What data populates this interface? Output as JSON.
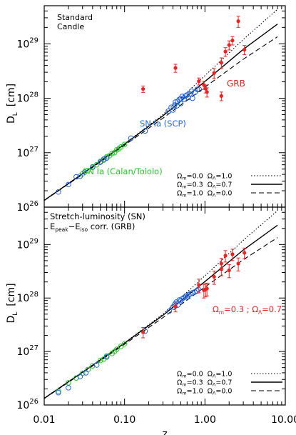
{
  "chart_data": [
    {
      "type": "scatter",
      "panel": "top",
      "annotations": [
        "Standard",
        "Candle"
      ],
      "xlabel": "z",
      "ylabel": "D_L   [cm]",
      "xscale": "log",
      "yscale": "log",
      "xlim": [
        0.01,
        10.0
      ],
      "ylim": [
        1e+26,
        5e+29
      ],
      "x_ticks": [
        "0.01",
        "0.10",
        "1.00",
        "10.00"
      ],
      "y_ticks": [
        "10^26",
        "10^27",
        "10^28",
        "10^29"
      ],
      "legend_position": "bottom-right",
      "lines": [
        {
          "name": "Ω_M=0.0  Ω_Λ=1.0",
          "style": "dotted",
          "x": [
            0.01,
            0.03,
            0.1,
            0.3,
            1.0,
            3.0,
            8.0
          ],
          "y": [
            1.35e+26,
            4.15e+26,
            1.46e+27,
            5e+27,
            2.6e+28,
            1.2e+29,
            4.3e+29
          ]
        },
        {
          "name": "Ω_M=0.3  Ω_Λ=0.7",
          "style": "solid",
          "x": [
            0.01,
            0.03,
            0.1,
            0.3,
            1.0,
            3.0,
            8.0
          ],
          "y": [
            1.33e+26,
            4.12e+26,
            1.44e+27,
            4.75e+27,
            2.03e+28,
            7.9e+28,
            2.3e+29
          ]
        },
        {
          "name": "Ω_M=1.0  Ω_Λ=0.0",
          "style": "dashed",
          "x": [
            0.01,
            0.03,
            0.1,
            0.3,
            1.0,
            3.0,
            8.0
          ],
          "y": [
            1.32e+26,
            4e+26,
            1.37e+27,
            4.3e+27,
            1.6e+28,
            5.2e+28,
            1.35e+29
          ]
        }
      ],
      "series": [
        {
          "name": "SN Ia (Calan/Tololo)",
          "color": "#22cc22",
          "marker": "circle-open",
          "x": [
            0.03,
            0.035,
            0.04,
            0.045,
            0.05,
            0.055,
            0.06,
            0.065,
            0.07,
            0.075,
            0.08,
            0.085,
            0.09,
            0.1
          ],
          "y": [
            4.1e+26,
            4.7e+26,
            5.5e+26,
            6e+26,
            6.9e+26,
            7.3e+26,
            8.4e+26,
            8.8e+26,
            9.7e+26,
            1e+27,
            1.13e+27,
            1.18e+27,
            1.27e+27,
            1.42e+27
          ]
        },
        {
          "name": "SN Ia (SCP)",
          "color": "#2266dd",
          "marker": "circle-open",
          "x": [
            0.015,
            0.02,
            0.025,
            0.028,
            0.032,
            0.04,
            0.05,
            0.055,
            0.06,
            0.12,
            0.18,
            0.35,
            0.38,
            0.4,
            0.42,
            0.43,
            0.45,
            0.46,
            0.48,
            0.5,
            0.5,
            0.52,
            0.55,
            0.57,
            0.6,
            0.62,
            0.65,
            0.68,
            0.7,
            0.75,
            0.8,
            0.85
          ],
          "y": [
            1.9e+26,
            2.6e+26,
            3.6e+26,
            3.7e+26,
            4.4e+26,
            5.4e+26,
            6.7e+26,
            7.6e+26,
            8e+26,
            1.85e+27,
            2.5e+27,
            5.8e+27,
            6.8e+27,
            6.1e+27,
            7.5e+27,
            8.5e+27,
            7.3e+27,
            8.8e+27,
            9.5e+27,
            8e+27,
            9.8e+27,
            1.08e+28,
            9.6e+27,
            1.1e+28,
            1.15e+28,
            1.03e+28,
            1.2e+28,
            1.35e+28,
            1e+28,
            1.28e+28,
            1.45e+28,
            1.45e+28
          ]
        },
        {
          "name": "GRB",
          "color": "#ee2222",
          "marker": "filled-circle-errorbar",
          "x": [
            0.17,
            0.43,
            0.84,
            0.97,
            1.02,
            1.06,
            1.3,
            1.6,
            1.6,
            1.8,
            2.0,
            2.2,
            2.6,
            3.1
          ],
          "y": [
            1.48e+28,
            3.6e+28,
            2.05e+28,
            1.75e+28,
            1.5e+28,
            1.3e+28,
            2.9e+28,
            1.1e+28,
            4.5e+28,
            7.2e+28,
            9.5e+28,
            1.15e+29,
            2.6e+29,
            7.8e+28
          ],
          "y_err": [
            2e+27,
            6e+27,
            3e+27,
            3e+27,
            2.5e+27,
            2.5e+27,
            6e+27,
            2e+27,
            1e+28,
            1.3e+28,
            1.8e+28,
            2e+28,
            6e+28,
            1.5e+28
          ]
        }
      ]
    },
    {
      "type": "scatter",
      "panel": "bottom",
      "annotations": [
        "Stretch-luminosity (SN)",
        "E_peak-E_iso corr. (GRB)",
        "Ω_M=0.3 ; Ω_Λ=0.7"
      ],
      "xlabel": "z",
      "ylabel": "D_L   [cm]",
      "xscale": "log",
      "yscale": "log",
      "xlim": [
        0.01,
        10.0
      ],
      "ylim": [
        1e+26,
        5e+29
      ],
      "x_ticks": [
        "0.01",
        "0.10",
        "1.00",
        "10.00"
      ],
      "y_ticks": [
        "10^26",
        "10^27",
        "10^28",
        "10^29"
      ],
      "legend_position": "bottom-right",
      "lines": [
        {
          "name": "Ω_M=0.0  Ω_Λ=1.0",
          "style": "dotted",
          "x": [
            0.01,
            0.03,
            0.1,
            0.3,
            1.0,
            3.0,
            8.0
          ],
          "y": [
            1.35e+26,
            4.15e+26,
            1.46e+27,
            5e+27,
            2.6e+28,
            1.2e+29,
            4.3e+29
          ]
        },
        {
          "name": "Ω_M=0.3  Ω_Λ=0.7",
          "style": "solid",
          "x": [
            0.01,
            0.03,
            0.1,
            0.3,
            1.0,
            3.0,
            8.0
          ],
          "y": [
            1.33e+26,
            4.12e+26,
            1.44e+27,
            4.75e+27,
            2.03e+28,
            7.9e+28,
            2.3e+29
          ]
        },
        {
          "name": "Ω_M=1.0  Ω_Λ=0.0",
          "style": "dashed",
          "x": [
            0.01,
            0.03,
            0.1,
            0.3,
            1.0,
            3.0,
            8.0
          ],
          "y": [
            1.32e+26,
            4e+26,
            1.37e+27,
            4.3e+27,
            1.6e+28,
            5.2e+28,
            1.35e+29
          ]
        }
      ],
      "series": [
        {
          "name": "SN Ia (Calan/Tololo)",
          "color": "#22cc22",
          "marker": "circle-open",
          "x": [
            0.015,
            0.02,
            0.025,
            0.03,
            0.035,
            0.04,
            0.05,
            0.055,
            0.06,
            0.07,
            0.075,
            0.08,
            0.09,
            0.1
          ],
          "y": [
            1.8e+26,
            2.6e+26,
            3.2e+26,
            3.9e+26,
            4.6e+26,
            5.4e+26,
            6.8e+26,
            7.2e+26,
            8.3e+26,
            9.2e+26,
            1e+27,
            1.1e+27,
            1.25e+27,
            1.4e+27
          ]
        },
        {
          "name": "SN Ia (SCP)",
          "color": "#2266dd",
          "marker": "circle-open",
          "x": [
            0.015,
            0.02,
            0.028,
            0.033,
            0.045,
            0.06,
            0.18,
            0.36,
            0.4,
            0.42,
            0.44,
            0.46,
            0.48,
            0.5,
            0.52,
            0.55,
            0.58,
            0.6,
            0.63,
            0.66,
            0.7,
            0.75,
            0.8,
            0.83
          ],
          "y": [
            1.7e+26,
            2.1e+26,
            3.4e+26,
            4e+26,
            5.6e+26,
            7.9e+26,
            2.4e+27,
            5.7e+27,
            6.8e+27,
            7.6e+27,
            8.4e+27,
            7.4e+27,
            9.2e+27,
            9e+27,
            9.6e+27,
            1.02e+28,
            1.1e+28,
            1.05e+28,
            1.15e+28,
            1.2e+28,
            1.25e+28,
            1.3e+28,
            1.35e+28,
            1.45e+28
          ]
        },
        {
          "name": "GRB",
          "color": "#ee2222",
          "marker": "filled-circle-errorbar",
          "x": [
            0.17,
            0.43,
            0.84,
            0.97,
            1.02,
            1.06,
            1.3,
            1.6,
            1.6,
            1.8,
            2.0,
            2.2,
            2.6,
            3.1
          ],
          "y": [
            2.3e+27,
            7e+27,
            1.75e+28,
            1.4e+28,
            1.45e+28,
            1.5e+28,
            2.5e+28,
            3.5e+28,
            4.4e+28,
            6.2e+28,
            3.3e+28,
            6.6e+28,
            4.4e+28,
            7e+28
          ],
          "y_err": [
            5e+26,
            1.5e+27,
            5e+27,
            4e+27,
            4e+27,
            4e+27,
            7e+27,
            9e+27,
            1.1e+28,
            1.5e+28,
            9e+27,
            1.6e+28,
            1.2e+28,
            1.6e+28
          ]
        }
      ]
    }
  ],
  "labels": {
    "top_line1": "Standard",
    "top_line2": "Candle",
    "grb": "GRB",
    "scp": "SN Ia (SCP)",
    "calan": "SN Ia (Calan/Tololo)",
    "bottom_line1": "Stretch-luminosity (SN)",
    "bottom_line2_a": "E",
    "bottom_line2_a_sub": "peak",
    "bottom_line2_b": "−E",
    "bottom_line2_b_sub": "iso",
    "bottom_line2_c": " corr. (GRB)",
    "model": "Ω",
    "model_sub_m": "m",
    "model_sub_l": "Λ",
    "model_mid": "=0.3 ; ",
    "model_end": "=0.7",
    "ylabel_d": "D",
    "ylabel_sub": "L",
    "ylabel_unit": "[cm]",
    "xlabel": "z",
    "legend_rows": [
      {
        "om": "=0.0",
        "ol": "=1.0"
      },
      {
        "om": "=0.3",
        "ol": "=0.7"
      },
      {
        "om": "=1.0",
        "ol": "=0.0"
      }
    ],
    "ytick_base": "10",
    "ytick_exps": [
      "26",
      "27",
      "28",
      "29"
    ],
    "xticks": [
      "0.01",
      "0.10",
      "1.00",
      "10.00"
    ]
  },
  "colors": {
    "frame": "#000000",
    "line": "#000000",
    "sn_calan": "#22cc22",
    "sn_scp": "#2266dd",
    "grb": "#ee2222"
  }
}
